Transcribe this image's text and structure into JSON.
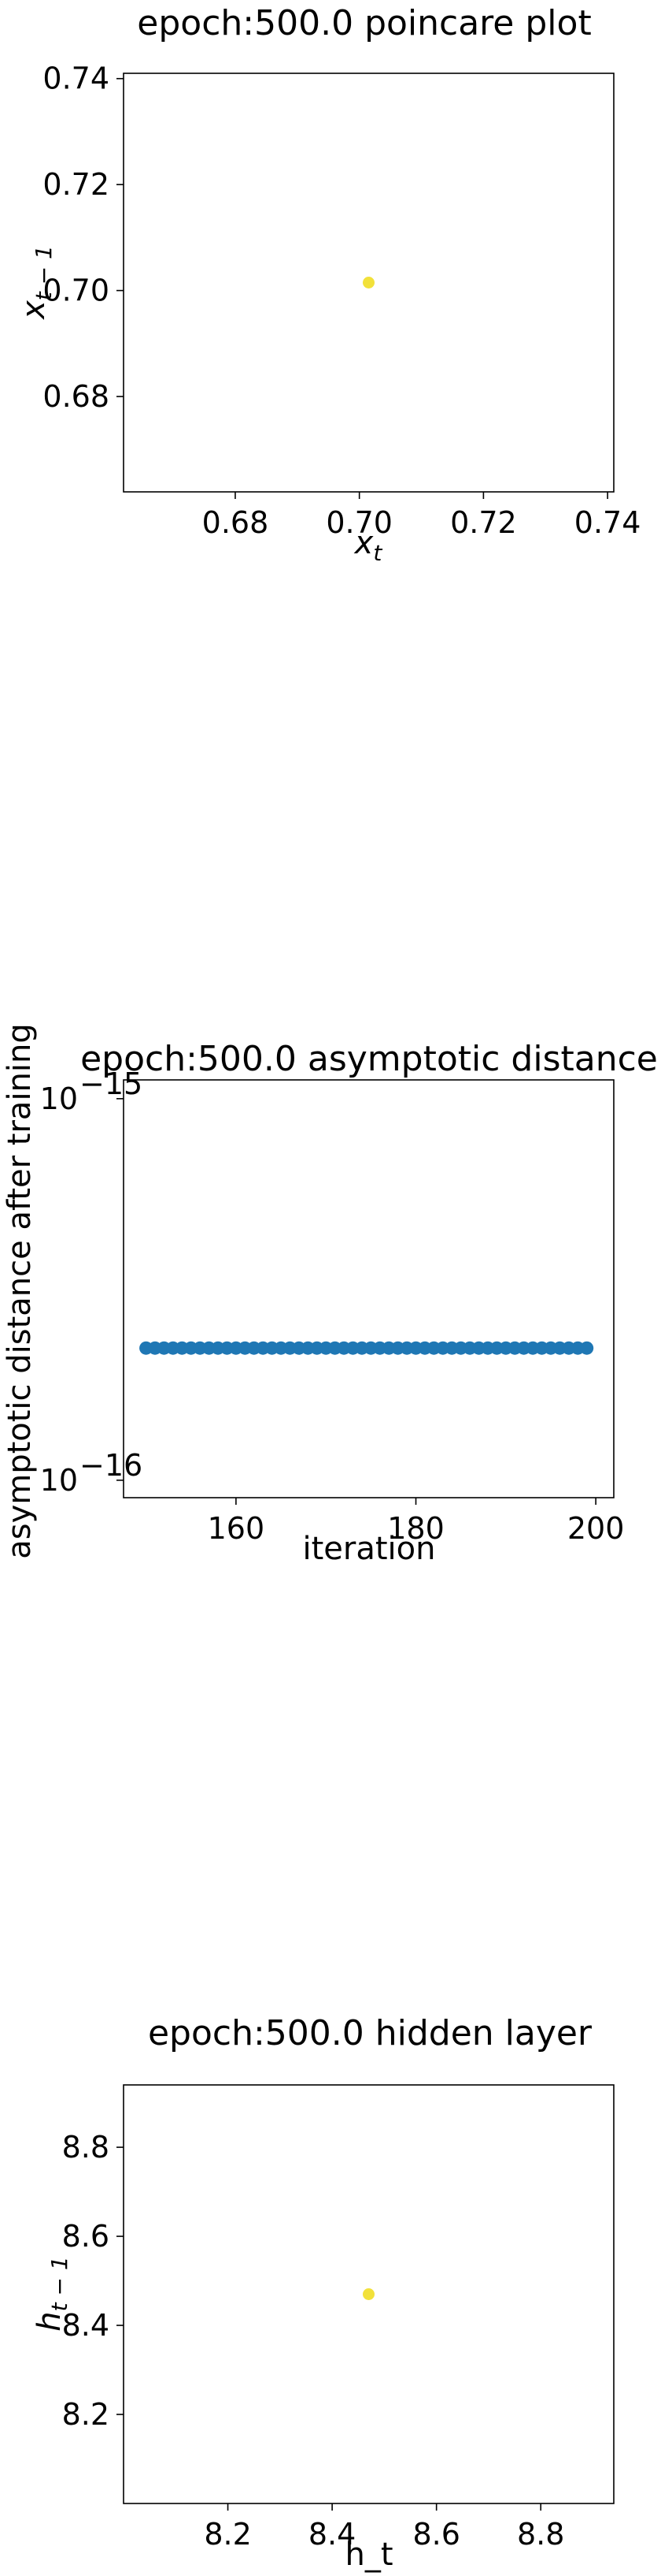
{
  "chart_data": [
    {
      "type": "scatter",
      "title": "epoch:500.0 poincare plot",
      "xlabel": "x_t",
      "ylabel": "x_{t-1}",
      "xlim": [
        0.662,
        0.741
      ],
      "ylim": [
        0.662,
        0.741
      ],
      "xticks": [
        "0.68",
        "0.70",
        "0.72",
        "0.74"
      ],
      "xtick_values": [
        0.68,
        0.7,
        0.72,
        0.74
      ],
      "yticks": [
        "0.68",
        "0.70",
        "0.72",
        "0.74"
      ],
      "ytick_values": [
        0.68,
        0.7,
        0.72,
        0.74
      ],
      "points": [
        {
          "x": 0.7015,
          "y": 0.7015
        }
      ],
      "color": "#f2e13a",
      "grid": false
    },
    {
      "type": "scatter",
      "title": "epoch:500.0 asymptotic distance",
      "xlabel": "iteration",
      "ylabel": "asymptotic distance after training",
      "yscale": "log",
      "xlim": [
        147.5,
        202
      ],
      "ylim": [
        9e-17,
        1.12e-15
      ],
      "xticks": [
        "160",
        "180",
        "200"
      ],
      "xtick_values": [
        160,
        180,
        200
      ],
      "yticks": [
        "10",
        "10"
      ],
      "ytick_exponents": [
        "−15",
        "−16"
      ],
      "ytick_values": [
        1e-15,
        1e-16
      ],
      "x_start": 150,
      "x_end": 199,
      "y_value": 2.22e-16,
      "color": "#1f77b4",
      "grid": false
    },
    {
      "type": "scatter",
      "title": "epoch:500.0 hidden layer",
      "xlabel": "h_t",
      "ylabel": "h_{t-1}",
      "xlim": [
        8.0,
        8.94
      ],
      "ylim": [
        8.0,
        8.94
      ],
      "xticks": [
        "8.2",
        "8.4",
        "8.6",
        "8.8"
      ],
      "xtick_values": [
        8.2,
        8.4,
        8.6,
        8.8
      ],
      "yticks": [
        "8.2",
        "8.4",
        "8.6",
        "8.8"
      ],
      "ytick_values": [
        8.2,
        8.4,
        8.6,
        8.8
      ],
      "points": [
        {
          "x": 8.47,
          "y": 8.47
        }
      ],
      "color": "#f2e13a",
      "grid": false
    }
  ]
}
